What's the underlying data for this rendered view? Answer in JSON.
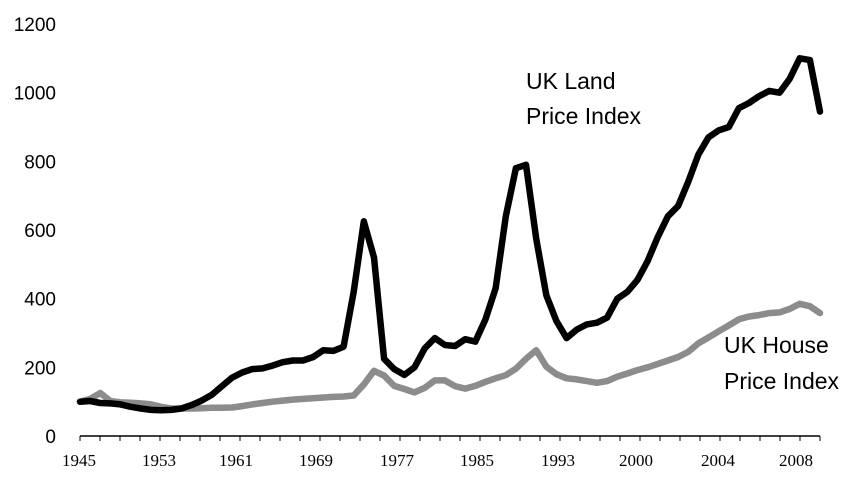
{
  "chart_data": {
    "type": "line",
    "title": "",
    "xlabel": "",
    "ylabel": "",
    "ylim": [
      0,
      1200
    ],
    "yticks": [
      "0",
      "200",
      "400",
      "600",
      "800",
      "1000",
      "1200"
    ],
    "xticks": [
      "1945",
      "1953",
      "1961",
      "1969",
      "1977",
      "1985",
      "1993",
      "2000",
      "2004",
      "2008"
    ],
    "grid": false,
    "legend": "inline labels",
    "series": [
      {
        "name": "UK Land Price Index",
        "label_lines": [
          "UK Land",
          "Price Index"
        ],
        "color": "#000000",
        "values": [
          [
            1945,
            100
          ],
          [
            1946,
            102
          ],
          [
            1947,
            96
          ],
          [
            1948,
            95
          ],
          [
            1949,
            92
          ],
          [
            1950,
            85
          ],
          [
            1951,
            80
          ],
          [
            1952,
            76
          ],
          [
            1953,
            75
          ],
          [
            1954,
            76
          ],
          [
            1955,
            80
          ],
          [
            1956,
            90
          ],
          [
            1957,
            103
          ],
          [
            1958,
            120
          ],
          [
            1959,
            145
          ],
          [
            1960,
            170
          ],
          [
            1961,
            185
          ],
          [
            1962,
            195
          ],
          [
            1963,
            197
          ],
          [
            1964,
            205
          ],
          [
            1965,
            215
          ],
          [
            1966,
            220
          ],
          [
            1967,
            220
          ],
          [
            1968,
            230
          ],
          [
            1969,
            250
          ],
          [
            1970,
            248
          ],
          [
            1971,
            260
          ],
          [
            1972,
            420
          ],
          [
            1973,
            625
          ],
          [
            1974,
            520
          ],
          [
            1975,
            225
          ],
          [
            1976,
            195
          ],
          [
            1977,
            178
          ],
          [
            1978,
            200
          ],
          [
            1979,
            255
          ],
          [
            1980,
            285
          ],
          [
            1981,
            265
          ],
          [
            1982,
            262
          ],
          [
            1983,
            282
          ],
          [
            1984,
            275
          ],
          [
            1985,
            340
          ],
          [
            1986,
            430
          ],
          [
            1987,
            640
          ],
          [
            1988,
            780
          ],
          [
            1989,
            790
          ],
          [
            1990,
            575
          ],
          [
            1991,
            410
          ],
          [
            1992,
            335
          ],
          [
            1993,
            285
          ],
          [
            1994,
            310
          ],
          [
            1995,
            325
          ],
          [
            1996,
            330
          ],
          [
            1997,
            345
          ],
          [
            1998,
            400
          ],
          [
            1999,
            420
          ],
          [
            2000,
            455
          ],
          [
            2001,
            510
          ],
          [
            2002,
            580
          ],
          [
            2003,
            640
          ],
          [
            2004,
            670
          ],
          [
            2005,
            740
          ],
          [
            2006,
            820
          ],
          [
            2007,
            870
          ],
          [
            2008,
            890
          ],
          [
            2009,
            900
          ],
          [
            2010,
            955
          ],
          [
            2011,
            970
          ],
          [
            2012,
            990
          ],
          [
            2013,
            1005
          ],
          [
            2014,
            1000
          ],
          [
            2015,
            1040
          ],
          [
            2016,
            1100
          ],
          [
            2017,
            1095
          ],
          [
            2018,
            945
          ]
        ]
      },
      {
        "name": "UK House Price Index",
        "label_lines": [
          "UK House",
          "Price Index"
        ],
        "color": "#8c8c8c",
        "values": [
          [
            1945,
            100
          ],
          [
            1946,
            108
          ],
          [
            1947,
            125
          ],
          [
            1948,
            102
          ],
          [
            1949,
            98
          ],
          [
            1950,
            97
          ],
          [
            1951,
            95
          ],
          [
            1952,
            92
          ],
          [
            1953,
            85
          ],
          [
            1954,
            80
          ],
          [
            1955,
            80
          ],
          [
            1956,
            80
          ],
          [
            1957,
            81
          ],
          [
            1958,
            82
          ],
          [
            1959,
            82
          ],
          [
            1960,
            83
          ],
          [
            1961,
            87
          ],
          [
            1962,
            92
          ],
          [
            1963,
            96
          ],
          [
            1964,
            100
          ],
          [
            1965,
            103
          ],
          [
            1966,
            106
          ],
          [
            1967,
            108
          ],
          [
            1968,
            110
          ],
          [
            1969,
            112
          ],
          [
            1970,
            114
          ],
          [
            1971,
            115
          ],
          [
            1972,
            118
          ],
          [
            1973,
            150
          ],
          [
            1974,
            190
          ],
          [
            1975,
            176
          ],
          [
            1976,
            146
          ],
          [
            1977,
            137
          ],
          [
            1978,
            127
          ],
          [
            1979,
            140
          ],
          [
            1980,
            162
          ],
          [
            1981,
            162
          ],
          [
            1982,
            145
          ],
          [
            1983,
            138
          ],
          [
            1984,
            146
          ],
          [
            1985,
            158
          ],
          [
            1986,
            168
          ],
          [
            1987,
            177
          ],
          [
            1988,
            196
          ],
          [
            1989,
            225
          ],
          [
            1990,
            250
          ],
          [
            1991,
            202
          ],
          [
            1992,
            180
          ],
          [
            1993,
            168
          ],
          [
            1994,
            165
          ],
          [
            1995,
            160
          ],
          [
            1996,
            155
          ],
          [
            1997,
            160
          ],
          [
            1998,
            173
          ],
          [
            1999,
            182
          ],
          [
            2000,
            192
          ],
          [
            2001,
            200
          ],
          [
            2002,
            210
          ],
          [
            2003,
            220
          ],
          [
            2004,
            230
          ],
          [
            2005,
            245
          ],
          [
            2006,
            270
          ],
          [
            2007,
            287
          ],
          [
            2008,
            305
          ],
          [
            2009,
            322
          ],
          [
            2010,
            340
          ],
          [
            2011,
            348
          ],
          [
            2012,
            352
          ],
          [
            2013,
            358
          ],
          [
            2014,
            360
          ],
          [
            2015,
            370
          ],
          [
            2016,
            385
          ],
          [
            2017,
            378
          ],
          [
            2018,
            358
          ]
        ]
      }
    ]
  }
}
